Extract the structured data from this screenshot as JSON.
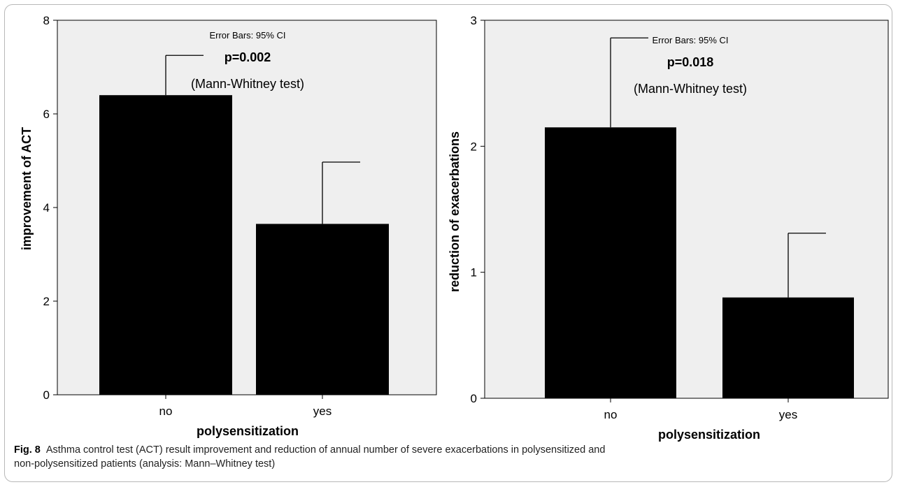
{
  "figure": {
    "label": "Fig. 8",
    "caption": "Asthma control test (ACT) result improvement and reduction of annual number of severe exacerbations in polysensitized and\nnon-polysensitized patients (analysis: Mann–Whitney test)"
  },
  "colors": {
    "plot_background": "#efefef",
    "bar_fill": "#000000",
    "border": "#b8b8b8"
  },
  "chart_data": [
    {
      "type": "bar",
      "categories": [
        "no",
        "yes"
      ],
      "values": [
        6.4,
        3.65
      ],
      "error_upper": [
        7.25,
        4.97
      ],
      "error_label": "Error Bars: 95% CI",
      "p_value": "p=0.002",
      "test": "(Mann-Whitney test)",
      "xlabel": "polysensitization",
      "ylabel": "improvement of ACT",
      "ylim": [
        0,
        8
      ],
      "yticks": [
        "0",
        "2",
        "4",
        "6",
        "8"
      ],
      "grid": false
    },
    {
      "type": "bar",
      "categories": [
        "no",
        "yes"
      ],
      "values": [
        2.15,
        0.8
      ],
      "error_upper": [
        2.86,
        1.31
      ],
      "error_label": "Error Bars: 95% CI",
      "p_value": "p=0.018",
      "test": "(Mann-Whitney test)",
      "xlabel": "polysensitization",
      "ylabel": "reduction of exacerbations",
      "ylim": [
        0,
        3
      ],
      "yticks": [
        "0",
        "1",
        "2",
        "3"
      ],
      "grid": false
    }
  ]
}
